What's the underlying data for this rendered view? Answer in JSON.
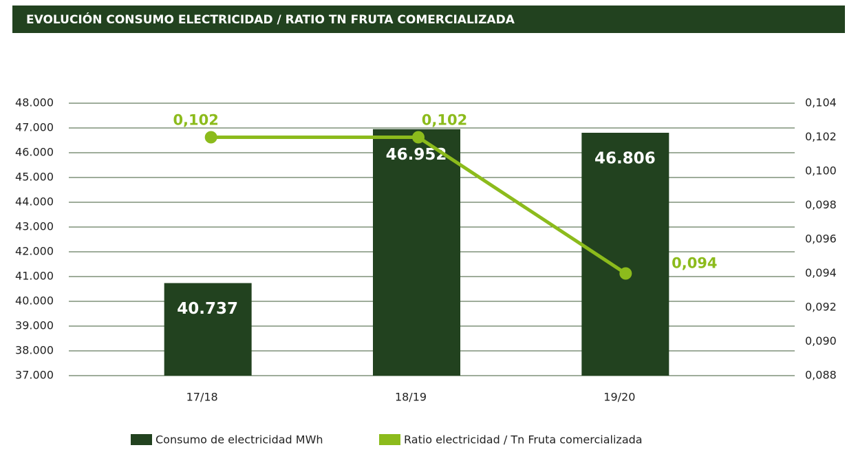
{
  "chart_data": {
    "type": "bar",
    "title": "EVOLUCIÓN CONSUMO ELECTRICIDAD / RATIO TN FRUTA COMERCIALIZADA",
    "categories": [
      "17/18",
      "18/19",
      "19/20"
    ],
    "series": [
      {
        "name": "Consumo de electricidad MWh",
        "type": "bar",
        "color": "#22421f",
        "values": [
          40737,
          46952,
          46806
        ],
        "value_labels": [
          "40.737",
          "46.952",
          "46.806"
        ]
      },
      {
        "name": "Ratio electricidad / Tn Fruta comercializada",
        "type": "line",
        "axis": "y2",
        "color": "#8cbb1c",
        "values": [
          0.102,
          0.102,
          0.094
        ],
        "value_labels": [
          "0,102",
          "0,102",
          "0,094"
        ]
      }
    ],
    "ylim": [
      37000,
      48000
    ],
    "yticks": [
      {
        "value": 37000,
        "label": "37.000"
      },
      {
        "value": 38000,
        "label": "38.000"
      },
      {
        "value": 39000,
        "label": "39.000"
      },
      {
        "value": 40000,
        "label": "40.000"
      },
      {
        "value": 41000,
        "label": "41.000"
      },
      {
        "value": 42000,
        "label": "42.000"
      },
      {
        "value": 43000,
        "label": "43.000"
      },
      {
        "value": 44000,
        "label": "44.000"
      },
      {
        "value": 45000,
        "label": "45.000"
      },
      {
        "value": 46000,
        "label": "46.000"
      },
      {
        "value": 47000,
        "label": "47.000"
      },
      {
        "value": 48000,
        "label": "48.000"
      }
    ],
    "y2lim": [
      0.088,
      0.104
    ],
    "y2ticks": [
      {
        "value": 0.088,
        "label": "0,088"
      },
      {
        "value": 0.09,
        "label": "0,090"
      },
      {
        "value": 0.092,
        "label": "0,092"
      },
      {
        "value": 0.094,
        "label": "0,094"
      },
      {
        "value": 0.096,
        "label": "0,096"
      },
      {
        "value": 0.098,
        "label": "0,098"
      },
      {
        "value": 0.1,
        "label": "0,100"
      },
      {
        "value": 0.102,
        "label": "0,102"
      },
      {
        "value": 0.104,
        "label": "0,104"
      }
    ],
    "grid": true,
    "legend": "bottom"
  }
}
